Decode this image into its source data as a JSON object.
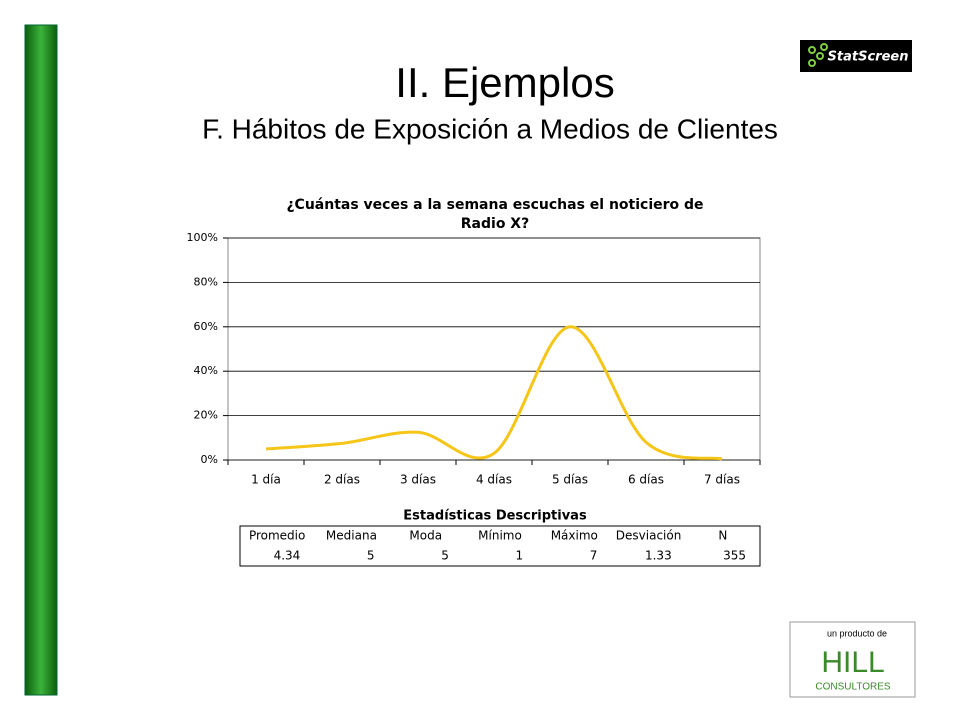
{
  "header": {
    "title": "II. Ejemplos",
    "subtitle": "F. Hábitos de Exposición a Medios de Clientes",
    "logo": "StatScreen"
  },
  "chart_data": {
    "type": "line",
    "title": "¿Cuántas veces a la semana escuchas el noticiero de Radio X?",
    "categories": [
      "1 día",
      "2 días",
      "3 días",
      "4 días",
      "5 días",
      "6 días",
      "7 días"
    ],
    "values": [
      5,
      7.5,
      12.5,
      3,
      60,
      8,
      0.5
    ],
    "color": "#f5c518",
    "ylim": [
      0,
      100
    ],
    "yticks": [
      {
        "value": 0,
        "label": "0%"
      },
      {
        "value": 20,
        "label": "20%"
      },
      {
        "value": 40,
        "label": "40%"
      },
      {
        "value": 60,
        "label": "60%"
      },
      {
        "value": 80,
        "label": "80%"
      },
      {
        "value": 100,
        "label": "100%"
      }
    ],
    "grid": true
  },
  "stats_table": {
    "title": "Estadísticas Descriptivas",
    "columns": [
      "Promedio",
      "Mediana",
      "Moda",
      "Mínimo",
      "Máximo",
      "Desviación",
      "N"
    ],
    "values": [
      4.34,
      5,
      5,
      1,
      7,
      1.33,
      355
    ]
  },
  "footer": {
    "caption": "un producto de",
    "brand": "HILL",
    "brand_sub": "CONSULTORES"
  }
}
